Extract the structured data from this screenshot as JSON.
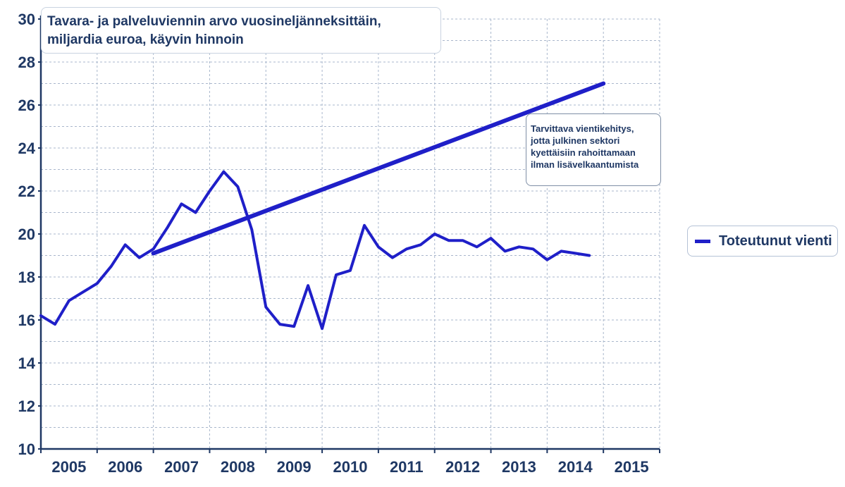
{
  "title": "Tavara- ja palveluviennin arvo vuosineljänneksittäin, miljardia euroa, käyvin hinnoin",
  "title_lines": [
    "Tavara- ja palveluviennin arvo vuosineljänneksittäin,",
    "miljardia euroa, käyvin hinnoin"
  ],
  "annotation_lines": [
    "Tarvittava vientikehitys,",
    "jotta julkinen sektori",
    "kyettäisiin rahoittamaan",
    "ilman lisävelkaantumista"
  ],
  "legend": {
    "label": "Toteutunut vienti"
  },
  "colors": {
    "series": "#1f1fc8",
    "axis_text": "#1f3864",
    "grid": "#a9b7cc"
  },
  "chart_data": {
    "type": "line",
    "ylim": [
      10,
      30
    ],
    "yticks": [
      10,
      12,
      14,
      16,
      18,
      20,
      22,
      24,
      26,
      28,
      30
    ],
    "x_categories": [
      "2005",
      "2006",
      "2007",
      "2008",
      "2009",
      "2010",
      "2011",
      "2012",
      "2013",
      "2014",
      "2015"
    ],
    "grid": true,
    "legend_position": "right",
    "series": [
      {
        "name": "Toteutunut vienti",
        "style": "thin",
        "x": [
          2005.0,
          2005.25,
          2005.5,
          2005.75,
          2006.0,
          2006.25,
          2006.5,
          2006.75,
          2007.0,
          2007.25,
          2007.5,
          2007.75,
          2008.0,
          2008.25,
          2008.5,
          2008.75,
          2009.0,
          2009.25,
          2009.5,
          2009.75,
          2010.0,
          2010.25,
          2010.5,
          2010.75,
          2011.0,
          2011.25,
          2011.5,
          2011.75,
          2012.0,
          2012.25,
          2012.5,
          2012.75,
          2013.0,
          2013.25,
          2013.5,
          2013.75,
          2014.0,
          2014.25,
          2014.5,
          2014.75
        ],
        "y": [
          16.2,
          15.8,
          16.9,
          17.3,
          17.7,
          18.5,
          19.5,
          18.9,
          19.3,
          20.3,
          21.4,
          21.0,
          22.0,
          22.9,
          22.2,
          20.2,
          16.6,
          15.8,
          15.7,
          17.6,
          15.6,
          18.1,
          18.3,
          20.4,
          19.4,
          18.9,
          19.3,
          19.5,
          20.0,
          19.7,
          19.7,
          19.4,
          19.8,
          19.2,
          19.4,
          19.3,
          18.8,
          19.2,
          19.1,
          19.0
        ]
      },
      {
        "name": "",
        "style": "thick",
        "x": [
          2007.0,
          2015.0
        ],
        "y": [
          19.1,
          27.0
        ]
      }
    ]
  }
}
